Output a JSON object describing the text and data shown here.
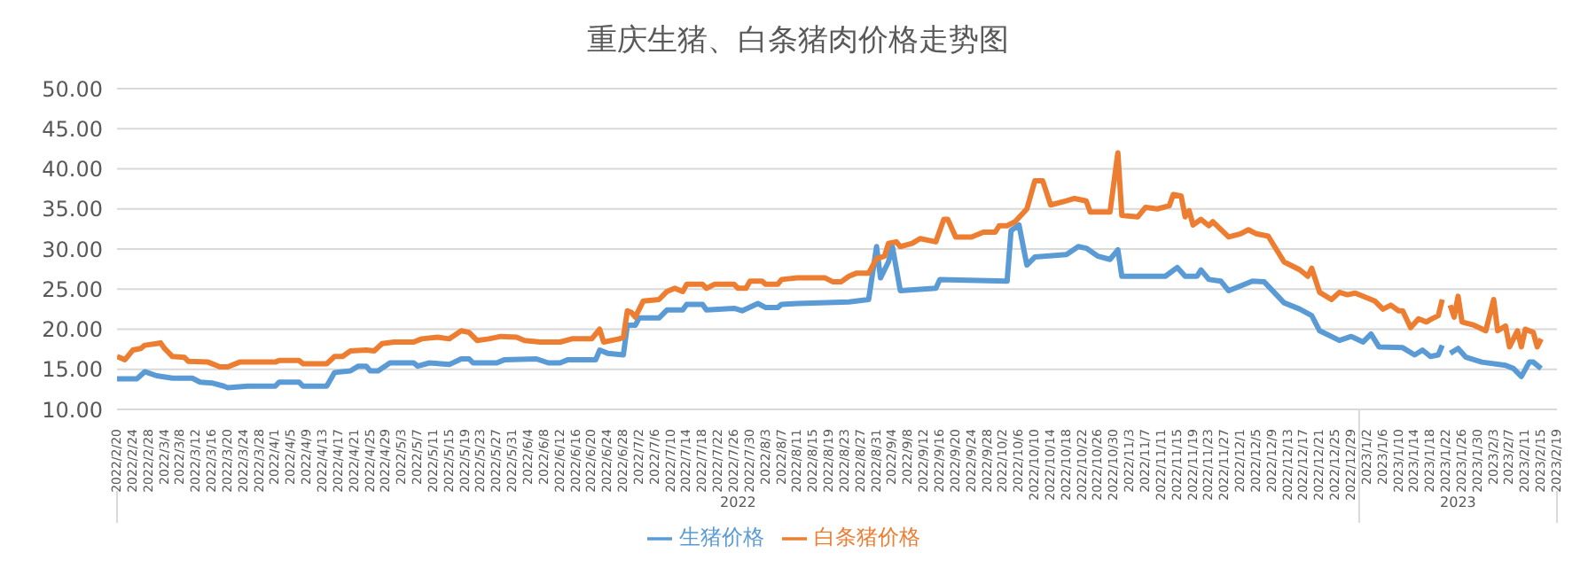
{
  "chart_data": {
    "type": "line",
    "title": "重庆生猪、白条猪肉价格走势图",
    "xlim": [
      "2022-02-20",
      "2023-02-19"
    ],
    "xticks": [
      {
        "value": "2022-02-20",
        "label": "2022/2/20"
      },
      {
        "value": "2022-02-24",
        "label": "2022/2/24"
      },
      {
        "value": "2022-02-28",
        "label": "2022/2/28"
      },
      {
        "value": "2022-03-04",
        "label": "2022/3/4"
      },
      {
        "value": "2022-03-08",
        "label": "2022/3/8"
      },
      {
        "value": "2022-03-12",
        "label": "2022/3/12"
      },
      {
        "value": "2022-03-16",
        "label": "2022/3/16"
      },
      {
        "value": "2022-03-20",
        "label": "2022/3/20"
      },
      {
        "value": "2022-03-24",
        "label": "2022/3/24"
      },
      {
        "value": "2022-03-28",
        "label": "2022/3/28"
      },
      {
        "value": "2022-04-01",
        "label": "2022/4/1"
      },
      {
        "value": "2022-04-05",
        "label": "2022/4/5"
      },
      {
        "value": "2022-04-09",
        "label": "2022/4/9"
      },
      {
        "value": "2022-04-13",
        "label": "2022/4/13"
      },
      {
        "value": "2022-04-17",
        "label": "2022/4/17"
      },
      {
        "value": "2022-04-21",
        "label": "2022/4/21"
      },
      {
        "value": "2022-04-25",
        "label": "2022/4/25"
      },
      {
        "value": "2022-04-29",
        "label": "2022/4/29"
      },
      {
        "value": "2022-05-03",
        "label": "2022/5/3"
      },
      {
        "value": "2022-05-07",
        "label": "2022/5/7"
      },
      {
        "value": "2022-05-11",
        "label": "2022/5/11"
      },
      {
        "value": "2022-05-15",
        "label": "2022/5/15"
      },
      {
        "value": "2022-05-19",
        "label": "2022/5/19"
      },
      {
        "value": "2022-05-23",
        "label": "2022/5/23"
      },
      {
        "value": "2022-05-27",
        "label": "2022/5/27"
      },
      {
        "value": "2022-05-31",
        "label": "2022/5/31"
      },
      {
        "value": "2022-06-04",
        "label": "2022/6/4"
      },
      {
        "value": "2022-06-08",
        "label": "2022/6/8"
      },
      {
        "value": "2022-06-12",
        "label": "2022/6/12"
      },
      {
        "value": "2022-06-16",
        "label": "2022/6/16"
      },
      {
        "value": "2022-06-20",
        "label": "2022/6/20"
      },
      {
        "value": "2022-06-24",
        "label": "2022/6/24"
      },
      {
        "value": "2022-06-28",
        "label": "2022/6/28"
      },
      {
        "value": "2022-07-02",
        "label": "2022/7/2"
      },
      {
        "value": "2022-07-06",
        "label": "2022/7/6"
      },
      {
        "value": "2022-07-10",
        "label": "2022/7/10"
      },
      {
        "value": "2022-07-14",
        "label": "2022/7/14"
      },
      {
        "value": "2022-07-18",
        "label": "2022/7/18"
      },
      {
        "value": "2022-07-22",
        "label": "2022/7/22"
      },
      {
        "value": "2022-07-26",
        "label": "2022/7/26"
      },
      {
        "value": "2022-07-30",
        "label": "2022/7/30"
      },
      {
        "value": "2022-08-03",
        "label": "2022/8/3"
      },
      {
        "value": "2022-08-07",
        "label": "2022/8/7"
      },
      {
        "value": "2022-08-11",
        "label": "2022/8/11"
      },
      {
        "value": "2022-08-15",
        "label": "2022/8/15"
      },
      {
        "value": "2022-08-19",
        "label": "2022/8/19"
      },
      {
        "value": "2022-08-23",
        "label": "2022/8/23"
      },
      {
        "value": "2022-08-27",
        "label": "2022/8/27"
      },
      {
        "value": "2022-08-31",
        "label": "2022/8/31"
      },
      {
        "value": "2022-09-04",
        "label": "2022/9/4"
      },
      {
        "value": "2022-09-08",
        "label": "2022/9/8"
      },
      {
        "value": "2022-09-12",
        "label": "2022/9/12"
      },
      {
        "value": "2022-09-16",
        "label": "2022/9/16"
      },
      {
        "value": "2022-09-20",
        "label": "2022/9/20"
      },
      {
        "value": "2022-09-24",
        "label": "2022/9/24"
      },
      {
        "value": "2022-09-28",
        "label": "2022/9/28"
      },
      {
        "value": "2022-10-02",
        "label": "2022/10/2"
      },
      {
        "value": "2022-10-06",
        "label": "2022/10/6"
      },
      {
        "value": "2022-10-10",
        "label": "2022/10/10"
      },
      {
        "value": "2022-10-14",
        "label": "2022/10/14"
      },
      {
        "value": "2022-10-18",
        "label": "2022/10/18"
      },
      {
        "value": "2022-10-22",
        "label": "2022/10/22"
      },
      {
        "value": "2022-10-26",
        "label": "2022/10/26"
      },
      {
        "value": "2022-10-30",
        "label": "2022/10/30"
      },
      {
        "value": "2022-11-03",
        "label": "2022/11/3"
      },
      {
        "value": "2022-11-07",
        "label": "2022/11/7"
      },
      {
        "value": "2022-11-11",
        "label": "2022/11/11"
      },
      {
        "value": "2022-11-15",
        "label": "2022/11/15"
      },
      {
        "value": "2022-11-19",
        "label": "2022/11/19"
      },
      {
        "value": "2022-11-23",
        "label": "2022/11/23"
      },
      {
        "value": "2022-11-27",
        "label": "2022/11/27"
      },
      {
        "value": "2022-12-01",
        "label": "2022/12/1"
      },
      {
        "value": "2022-12-05",
        "label": "2022/12/5"
      },
      {
        "value": "2022-12-09",
        "label": "2022/12/9"
      },
      {
        "value": "2022-12-13",
        "label": "2022/12/13"
      },
      {
        "value": "2022-12-17",
        "label": "2022/12/17"
      },
      {
        "value": "2022-12-21",
        "label": "2022/12/21"
      },
      {
        "value": "2022-12-25",
        "label": "2022/12/25"
      },
      {
        "value": "2022-12-29",
        "label": "2022/12/29"
      },
      {
        "value": "2023-01-02",
        "label": "2023/1/2"
      },
      {
        "value": "2023-01-06",
        "label": "2023/1/6"
      },
      {
        "value": "2023-01-10",
        "label": "2023/1/10"
      },
      {
        "value": "2023-01-14",
        "label": "2023/1/14"
      },
      {
        "value": "2023-01-18",
        "label": "2023/1/18"
      },
      {
        "value": "2023-01-22",
        "label": "2023/1/22"
      },
      {
        "value": "2023-01-26",
        "label": "2023/1/26"
      },
      {
        "value": "2023-01-30",
        "label": "2023/1/30"
      },
      {
        "value": "2023-02-03",
        "label": "2023/2/3"
      },
      {
        "value": "2023-02-07",
        "label": "2023/2/7"
      },
      {
        "value": "2023-02-11",
        "label": "2023/2/11"
      },
      {
        "value": "2023-02-15",
        "label": "2023/2/15"
      },
      {
        "value": "2023-02-19",
        "label": "2023/2/19"
      }
    ],
    "ylim": [
      10,
      50
    ],
    "yticks": [
      {
        "value": 10,
        "label": "10.00"
      },
      {
        "value": 15,
        "label": "15.00"
      },
      {
        "value": 20,
        "label": "20.00"
      },
      {
        "value": 25,
        "label": "25.00"
      },
      {
        "value": 30,
        "label": "30.00"
      },
      {
        "value": 35,
        "label": "35.00"
      },
      {
        "value": 40,
        "label": "40.00"
      },
      {
        "value": 45,
        "label": "45.00"
      },
      {
        "value": 50,
        "label": "50.00"
      }
    ],
    "grid": "y",
    "legend": "bottom",
    "annotations": [
      "2022",
      "2023"
    ],
    "series": [
      {
        "name": "生猪价格",
        "color": "#5b9bd5",
        "x": [
          "2022-02-20",
          "2022-02-25",
          "2022-02-27",
          "2022-03-02",
          "2022-03-06",
          "2022-03-11",
          "2022-03-13",
          "2022-03-16",
          "2022-03-19",
          "2022-03-20",
          "2022-03-25",
          "2022-04-01",
          "2022-04-02",
          "2022-04-07",
          "2022-04-08",
          "2022-04-14",
          "2022-04-16",
          "2022-04-20",
          "2022-04-22",
          "2022-04-24",
          "2022-04-25",
          "2022-04-27",
          "2022-04-30",
          "2022-05-06",
          "2022-05-07",
          "2022-05-10",
          "2022-05-15",
          "2022-05-18",
          "2022-05-20",
          "2022-05-21",
          "2022-05-27",
          "2022-05-29",
          "2022-06-06",
          "2022-06-09",
          "2022-06-12",
          "2022-06-14",
          "2022-06-21",
          "2022-06-22",
          "2022-06-24",
          "2022-06-28",
          "2022-06-29",
          "2022-07-01",
          "2022-07-02",
          "2022-07-07",
          "2022-07-09",
          "2022-07-13",
          "2022-07-14",
          "2022-07-18",
          "2022-07-19",
          "2022-07-26",
          "2022-07-28",
          "2022-08-01",
          "2022-08-03",
          "2022-08-06",
          "2022-08-07",
          "2022-08-11",
          "2022-08-24",
          "2022-08-29",
          "2022-08-31",
          "2022-09-01",
          "2022-09-03",
          "2022-09-04",
          "2022-09-06",
          "2022-09-15",
          "2022-09-16",
          "2022-10-03",
          "2022-10-04",
          "2022-10-06",
          "2022-10-08",
          "2022-10-10",
          "2022-10-18",
          "2022-10-21",
          "2022-10-23",
          "2022-10-26",
          "2022-10-29",
          "2022-10-31",
          "2022-11-01",
          "2022-11-12",
          "2022-11-15",
          "2022-11-17",
          "2022-11-20",
          "2022-11-21",
          "2022-11-23",
          "2022-11-26",
          "2022-11-28",
          "2022-11-30",
          "2022-12-04",
          "2022-12-07",
          "2022-12-12",
          "2022-12-16",
          "2022-12-19",
          "2022-12-21",
          "2022-12-26",
          "2022-12-29",
          "2023-01-01",
          "2023-01-03",
          "2023-01-05",
          "2023-01-11",
          "2023-01-14",
          "2023-01-16",
          "2023-01-18",
          "2023-01-20",
          "2023-01-21",
          "2023-01-22",
          "2023-01-23",
          "2023-01-25",
          "2023-01-27",
          "2023-01-31",
          "2023-02-06",
          "2023-02-08",
          "2023-02-10",
          "2023-02-12",
          "2023-02-13",
          "2023-02-15"
        ],
        "values": [
          13.8,
          13.8,
          14.7,
          14.2,
          13.9,
          13.9,
          13.4,
          13.3,
          12.9,
          12.7,
          12.9,
          12.9,
          13.4,
          13.4,
          12.9,
          12.9,
          14.6,
          14.8,
          15.4,
          15.4,
          14.8,
          14.8,
          15.8,
          15.8,
          15.4,
          15.8,
          15.6,
          16.3,
          16.3,
          15.8,
          15.8,
          16.2,
          16.3,
          15.8,
          15.8,
          16.2,
          16.2,
          17.4,
          17.0,
          16.8,
          20.5,
          20.5,
          21.4,
          21.4,
          22.4,
          22.4,
          23.1,
          23.1,
          22.4,
          22.6,
          22.3,
          23.2,
          22.7,
          22.7,
          23.1,
          23.2,
          23.4,
          23.7,
          30.3,
          26.4,
          28.4,
          30.3,
          24.8,
          25.1,
          26.2,
          26.0,
          32.3,
          33.0,
          28.0,
          29.0,
          29.3,
          30.3,
          30.1,
          29.1,
          28.7,
          29.9,
          26.6,
          26.6,
          27.7,
          26.6,
          26.6,
          27.4,
          26.2,
          26.0,
          24.8,
          25.2,
          26.0,
          25.9,
          23.3,
          22.5,
          21.7,
          19.8,
          18.6,
          19.1,
          18.4,
          19.4,
          17.8,
          17.7,
          16.8,
          17.4,
          16.6,
          16.8,
          18.0,
          null,
          17.0,
          17.6,
          16.5,
          15.9,
          15.5,
          15.1,
          14.1,
          15.9,
          15.9,
          15.1
        ]
      },
      {
        "name": "白条猪价格",
        "color": "#ed7d31",
        "x": [
          "2022-02-20",
          "2022-02-22",
          "2022-02-24",
          "2022-02-26",
          "2022-02-27",
          "2022-03-02",
          "2022-03-03",
          "2022-03-04",
          "2022-03-06",
          "2022-03-09",
          "2022-03-10",
          "2022-03-15",
          "2022-03-18",
          "2022-03-20",
          "2022-03-23",
          "2022-04-01",
          "2022-04-02",
          "2022-04-07",
          "2022-04-08",
          "2022-04-14",
          "2022-04-16",
          "2022-04-18",
          "2022-04-20",
          "2022-04-24",
          "2022-04-26",
          "2022-04-28",
          "2022-05-01",
          "2022-05-06",
          "2022-05-08",
          "2022-05-12",
          "2022-05-15",
          "2022-05-18",
          "2022-05-20",
          "2022-05-22",
          "2022-05-25",
          "2022-05-28",
          "2022-06-01",
          "2022-06-03",
          "2022-06-07",
          "2022-06-12",
          "2022-06-15",
          "2022-06-20",
          "2022-06-22",
          "2022-06-23",
          "2022-06-27",
          "2022-06-28",
          "2022-06-29",
          "2022-06-30",
          "2022-07-01",
          "2022-07-03",
          "2022-07-07",
          "2022-07-09",
          "2022-07-11",
          "2022-07-13",
          "2022-07-14",
          "2022-07-18",
          "2022-07-19",
          "2022-07-21",
          "2022-07-26",
          "2022-07-27",
          "2022-07-29",
          "2022-07-30",
          "2022-08-02",
          "2022-08-03",
          "2022-08-06",
          "2022-08-07",
          "2022-08-11",
          "2022-08-18",
          "2022-08-20",
          "2022-08-22",
          "2022-08-24",
          "2022-08-26",
          "2022-08-29",
          "2022-08-31",
          "2022-09-02",
          "2022-09-03",
          "2022-09-05",
          "2022-09-06",
          "2022-09-09",
          "2022-09-11",
          "2022-09-15",
          "2022-09-17",
          "2022-09-18",
          "2022-09-20",
          "2022-09-24",
          "2022-09-27",
          "2022-09-30",
          "2022-10-01",
          "2022-10-03",
          "2022-10-05",
          "2022-10-08",
          "2022-10-10",
          "2022-10-12",
          "2022-10-14",
          "2022-10-18",
          "2022-10-20",
          "2022-10-23",
          "2022-10-24",
          "2022-10-29",
          "2022-10-31",
          "2022-11-01",
          "2022-11-05",
          "2022-11-07",
          "2022-11-10",
          "2022-11-13",
          "2022-11-14",
          "2022-11-16",
          "2022-11-17",
          "2022-11-18",
          "2022-11-19",
          "2022-11-21",
          "2022-11-23",
          "2022-11-24",
          "2022-11-28",
          "2022-12-01",
          "2022-12-03",
          "2022-12-05",
          "2022-12-08",
          "2022-12-12",
          "2022-12-16",
          "2022-12-18",
          "2022-12-19",
          "2022-12-21",
          "2022-12-24",
          "2022-12-26",
          "2022-12-28",
          "2022-12-30",
          "2023-01-04",
          "2023-01-06",
          "2023-01-08",
          "2023-01-10",
          "2023-01-11",
          "2023-01-13",
          "2023-01-15",
          "2023-01-17",
          "2023-01-18",
          "2023-01-20",
          "2023-01-21",
          "2023-01-22",
          "2023-01-23",
          "2023-01-24",
          "2023-01-25",
          "2023-01-26",
          "2023-01-29",
          "2023-02-01",
          "2023-02-03",
          "2023-02-04",
          "2023-02-06",
          "2023-02-07",
          "2023-02-09",
          "2023-02-10",
          "2023-02-11",
          "2023-02-13",
          "2023-02-14",
          "2023-02-15"
        ],
        "values": [
          16.6,
          16.2,
          17.4,
          17.6,
          18.0,
          18.2,
          18.3,
          17.6,
          16.6,
          16.5,
          16.0,
          15.9,
          15.3,
          15.3,
          15.9,
          15.9,
          16.1,
          16.1,
          15.7,
          15.7,
          16.6,
          16.6,
          17.3,
          17.4,
          17.3,
          18.2,
          18.4,
          18.4,
          18.8,
          19.0,
          18.8,
          19.8,
          19.6,
          18.6,
          18.8,
          19.1,
          19.0,
          18.6,
          18.4,
          18.4,
          18.8,
          18.8,
          20.0,
          18.4,
          18.8,
          19.0,
          22.3,
          22.1,
          21.5,
          23.5,
          23.7,
          24.7,
          25.1,
          24.7,
          25.6,
          25.6,
          25.1,
          25.6,
          25.6,
          25.1,
          25.1,
          26.0,
          26.0,
          25.6,
          25.6,
          26.2,
          26.4,
          26.4,
          25.9,
          25.9,
          26.6,
          27.0,
          27.0,
          28.8,
          29.1,
          30.7,
          30.9,
          30.3,
          30.7,
          31.3,
          30.9,
          33.7,
          33.7,
          31.5,
          31.5,
          32.1,
          32.1,
          32.9,
          32.9,
          33.4,
          35.0,
          38.5,
          38.5,
          35.5,
          36.0,
          36.3,
          36.0,
          34.6,
          34.6,
          42.0,
          34.2,
          34.0,
          35.2,
          35.0,
          35.4,
          36.8,
          36.6,
          34.0,
          34.8,
          33.0,
          33.7,
          32.9,
          33.4,
          31.5,
          31.9,
          32.4,
          31.9,
          31.6,
          28.4,
          27.4,
          26.6,
          27.6,
          24.6,
          23.7,
          24.6,
          24.3,
          24.5,
          23.5,
          22.5,
          23.0,
          22.3,
          22.3,
          20.2,
          21.3,
          20.9,
          21.2,
          21.7,
          23.7,
          null,
          23.0,
          21.5,
          24.1,
          20.9,
          20.5,
          19.8,
          23.7,
          19.8,
          20.4,
          17.8,
          19.8,
          17.8,
          20.0,
          19.6,
          17.8,
          18.8
        ]
      }
    ]
  }
}
